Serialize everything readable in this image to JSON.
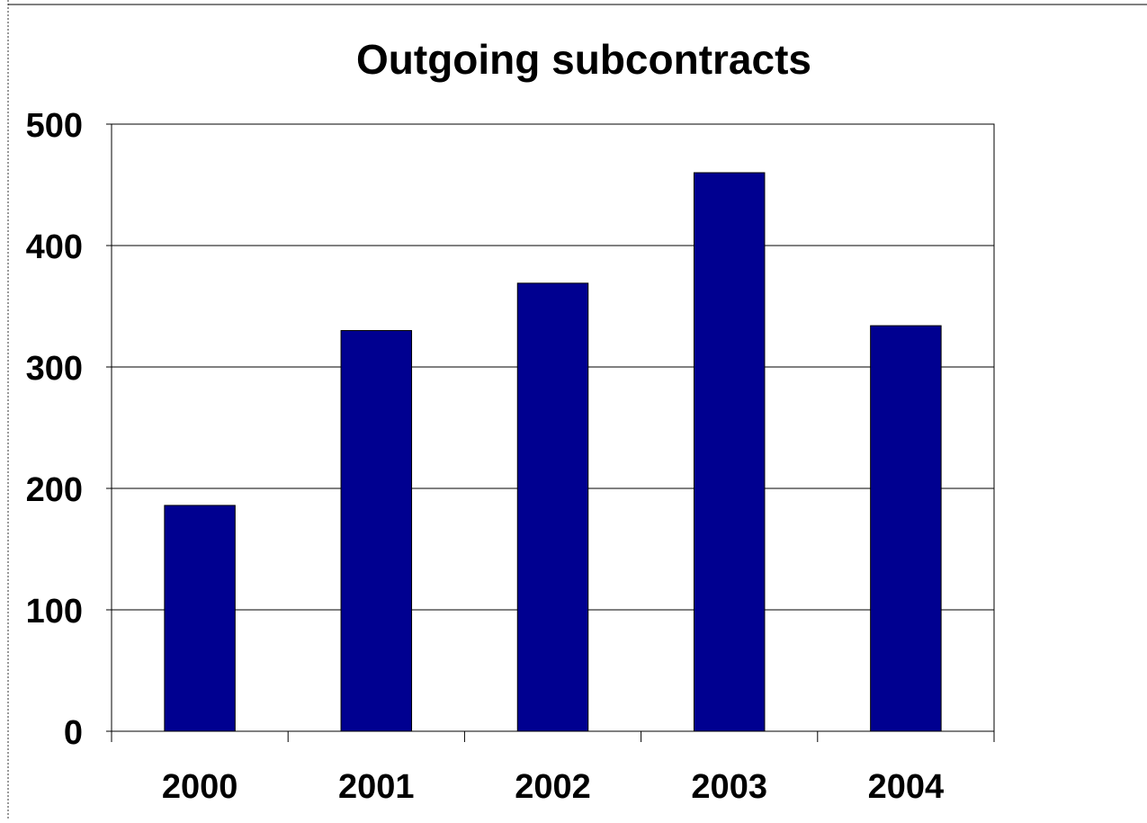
{
  "chart_data": {
    "type": "bar",
    "title": "Outgoing subcontracts",
    "xlabel": "",
    "ylabel": "",
    "categories": [
      "2000",
      "2001",
      "2002",
      "2003",
      "2004"
    ],
    "values": [
      186,
      330,
      369,
      460,
      334
    ],
    "ylim": [
      0,
      500
    ],
    "yticks": [
      "0",
      "100",
      "200",
      "300",
      "400",
      "500"
    ],
    "grid": true,
    "legend": "none",
    "colors": {
      "bar": "#000090",
      "bar_outline": "#000000",
      "gridline": "#000000",
      "frame": "#000000",
      "background": "#ffffff"
    }
  }
}
